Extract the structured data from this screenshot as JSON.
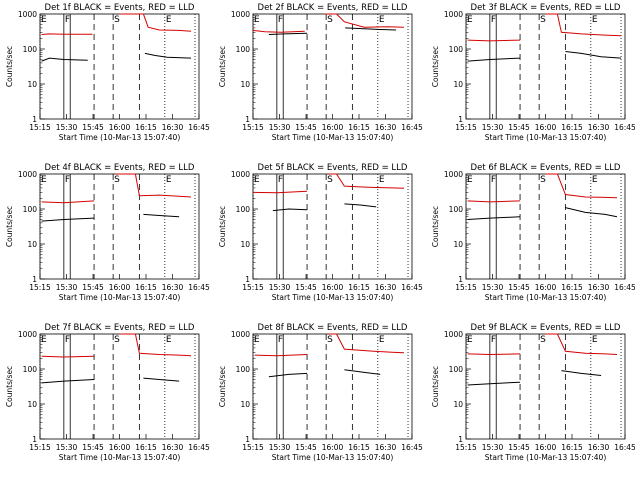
{
  "chart_data": [
    {
      "title": "Det 1f BLACK = Events, RED = LLD",
      "type": "line",
      "series": [
        {
          "segments": [
            [
              [
                0.02,
                260
              ],
              [
                0.12,
                270
              ],
              [
                0.3,
                265
              ],
              [
                0.66,
                265
              ]
            ],
            [
              [
                1.0,
                1000
              ],
              [
                1.3,
                1000
              ],
              [
                1.36,
                420
              ],
              [
                1.5,
                350
              ],
              [
                1.75,
                340
              ],
              [
                1.9,
                320
              ]
            ]
          ]
        },
        {
          "segments": [
            [
              [
                0.02,
                45
              ],
              [
                0.12,
                55
              ],
              [
                0.3,
                50
              ],
              [
                0.6,
                48
              ]
            ],
            [
              [
                1.32,
                75
              ],
              [
                1.45,
                65
              ],
              [
                1.6,
                58
              ],
              [
                1.9,
                55
              ]
            ]
          ]
        }
      ]
    },
    {
      "title": "Det 2f BLACK = Events, RED = LLD",
      "type": "line",
      "series": [
        {
          "segments": [
            [
              [
                0.0,
                340
              ],
              [
                0.15,
                310
              ],
              [
                0.35,
                300
              ],
              [
                0.65,
                320
              ]
            ],
            [
              [
                0.9,
                1000
              ],
              [
                1.05,
                1000
              ],
              [
                1.15,
                600
              ],
              [
                1.4,
                420
              ],
              [
                1.7,
                430
              ],
              [
                1.9,
                420
              ]
            ]
          ]
        },
        {
          "segments": [
            [
              [
                0.2,
                260
              ],
              [
                0.4,
                270
              ],
              [
                0.68,
                280
              ]
            ],
            [
              [
                1.16,
                400
              ],
              [
                1.4,
                380
              ],
              [
                1.6,
                360
              ],
              [
                1.8,
                350
              ]
            ]
          ]
        }
      ]
    },
    {
      "title": "Det 3f BLACK = Events, RED = LLD",
      "type": "line",
      "series": [
        {
          "segments": [
            [
              [
                0.02,
                180
              ],
              [
                0.3,
                170
              ],
              [
                0.68,
                180
              ]
            ],
            [
              [
                1.0,
                1000
              ],
              [
                1.15,
                1000
              ],
              [
                1.2,
                300
              ],
              [
                1.45,
                270
              ],
              [
                1.75,
                250
              ],
              [
                1.95,
                240
              ]
            ]
          ]
        },
        {
          "segments": [
            [
              [
                0.02,
                45
              ],
              [
                0.3,
                50
              ],
              [
                0.68,
                55
              ]
            ],
            [
              [
                1.25,
                85
              ],
              [
                1.45,
                75
              ],
              [
                1.7,
                60
              ],
              [
                1.95,
                55
              ]
            ]
          ]
        }
      ]
    },
    {
      "title": "Det 4f BLACK = Events, RED = LLD",
      "type": "line",
      "series": [
        {
          "segments": [
            [
              [
                0.02,
                160
              ],
              [
                0.3,
                150
              ],
              [
                0.68,
                170
              ]
            ],
            [
              [
                0.95,
                1000
              ],
              [
                1.2,
                1000
              ],
              [
                1.25,
                240
              ],
              [
                1.5,
                250
              ],
              [
                1.75,
                230
              ],
              [
                1.9,
                220
              ]
            ]
          ]
        },
        {
          "segments": [
            [
              [
                0.02,
                45
              ],
              [
                0.3,
                50
              ],
              [
                0.68,
                55
              ]
            ],
            [
              [
                1.3,
                70
              ],
              [
                1.5,
                65
              ],
              [
                1.75,
                60
              ]
            ]
          ]
        }
      ]
    },
    {
      "title": "Det 5f BLACK = Events, RED = LLD",
      "type": "line",
      "series": [
        {
          "segments": [
            [
              [
                0.0,
                300
              ],
              [
                0.3,
                290
              ],
              [
                0.68,
                320
              ]
            ],
            [
              [
                0.95,
                1000
              ],
              [
                1.05,
                1000
              ],
              [
                1.15,
                450
              ],
              [
                1.45,
                420
              ],
              [
                1.75,
                400
              ],
              [
                1.9,
                390
              ]
            ]
          ]
        },
        {
          "segments": [
            [
              [
                0.25,
                90
              ],
              [
                0.45,
                100
              ],
              [
                0.68,
                95
              ]
            ],
            [
              [
                1.15,
                140
              ],
              [
                1.35,
                130
              ],
              [
                1.55,
                115
              ]
            ]
          ]
        }
      ]
    },
    {
      "title": "Det 6f BLACK = Events, RED = LLD",
      "type": "line",
      "series": [
        {
          "segments": [
            [
              [
                0.02,
                170
              ],
              [
                0.3,
                160
              ],
              [
                0.68,
                170
              ]
            ],
            [
              [
                1.0,
                1000
              ],
              [
                1.15,
                1000
              ],
              [
                1.25,
                260
              ],
              [
                1.5,
                220
              ],
              [
                1.75,
                215
              ],
              [
                1.9,
                210
              ]
            ]
          ]
        },
        {
          "segments": [
            [
              [
                0.02,
                50
              ],
              [
                0.3,
                55
              ],
              [
                0.68,
                60
              ]
            ],
            [
              [
                1.25,
                110
              ],
              [
                1.5,
                80
              ],
              [
                1.75,
                70
              ],
              [
                1.9,
                60
              ]
            ]
          ]
        }
      ]
    },
    {
      "title": "Det 7f BLACK = Events, RED = LLD",
      "type": "line",
      "series": [
        {
          "segments": [
            [
              [
                0.02,
                230
              ],
              [
                0.3,
                220
              ],
              [
                0.68,
                230
              ]
            ],
            [
              [
                1.0,
                1000
              ],
              [
                1.2,
                1000
              ],
              [
                1.25,
                280
              ],
              [
                1.5,
                260
              ],
              [
                1.75,
                250
              ],
              [
                1.9,
                240
              ]
            ]
          ]
        },
        {
          "segments": [
            [
              [
                0.02,
                40
              ],
              [
                0.3,
                45
              ],
              [
                0.68,
                50
              ]
            ],
            [
              [
                1.3,
                55
              ],
              [
                1.5,
                50
              ],
              [
                1.75,
                45
              ]
            ]
          ]
        }
      ]
    },
    {
      "title": "Det 8f BLACK = Events, RED = LLD",
      "type": "line",
      "series": [
        {
          "segments": [
            [
              [
                0.02,
                250
              ],
              [
                0.3,
                240
              ],
              [
                0.68,
                260
              ]
            ],
            [
              [
                0.95,
                1000
              ],
              [
                1.05,
                1000
              ],
              [
                1.15,
                370
              ],
              [
                1.45,
                330
              ],
              [
                1.75,
                300
              ],
              [
                1.9,
                290
              ]
            ]
          ]
        },
        {
          "segments": [
            [
              [
                0.2,
                60
              ],
              [
                0.45,
                70
              ],
              [
                0.68,
                75
              ]
            ],
            [
              [
                1.15,
                95
              ],
              [
                1.4,
                80
              ],
              [
                1.6,
                70
              ]
            ]
          ]
        }
      ]
    },
    {
      "title": "Det 9f BLACK = Events, RED = LLD",
      "type": "line",
      "series": [
        {
          "segments": [
            [
              [
                0.02,
                270
              ],
              [
                0.3,
                260
              ],
              [
                0.68,
                270
              ]
            ],
            [
              [
                1.0,
                1000
              ],
              [
                1.15,
                1000
              ],
              [
                1.25,
                320
              ],
              [
                1.5,
                280
              ],
              [
                1.75,
                270
              ],
              [
                1.9,
                260
              ]
            ]
          ]
        },
        {
          "segments": [
            [
              [
                0.02,
                35
              ],
              [
                0.3,
                38
              ],
              [
                0.68,
                42
              ]
            ],
            [
              [
                1.2,
                90
              ],
              [
                1.45,
                75
              ],
              [
                1.7,
                65
              ]
            ]
          ]
        }
      ]
    }
  ],
  "common": {
    "ylabel": "Counts/sec",
    "xlabel": "Start Time (10-Mar-13 15:07:40)",
    "xticks": [
      "15:15",
      "15:30",
      "15:45",
      "16:00",
      "16:15",
      "16:30",
      "16:45"
    ],
    "yticks": [
      "1",
      "10",
      "100",
      "1000"
    ],
    "ylim": [
      1,
      1000
    ],
    "yscale": "log",
    "grid": false,
    "colors": {
      "events": "#000000",
      "lld": "#d40000"
    }
  },
  "markers": [
    {
      "label": "E",
      "style": "dotted",
      "pos": 0.0
    },
    {
      "label": "F",
      "style": "solid",
      "pos": 0.3
    },
    {
      "label": "",
      "style": "solid",
      "pos": 0.38
    },
    {
      "label": "",
      "style": "dashed",
      "pos": 0.68
    },
    {
      "label": "S",
      "style": "dashed",
      "pos": 0.92
    },
    {
      "label": "",
      "style": "dashed",
      "pos": 1.25
    },
    {
      "label": "E",
      "style": "dotted",
      "pos": 1.57
    },
    {
      "label": "",
      "style": "dotted",
      "pos": 1.95
    }
  ]
}
